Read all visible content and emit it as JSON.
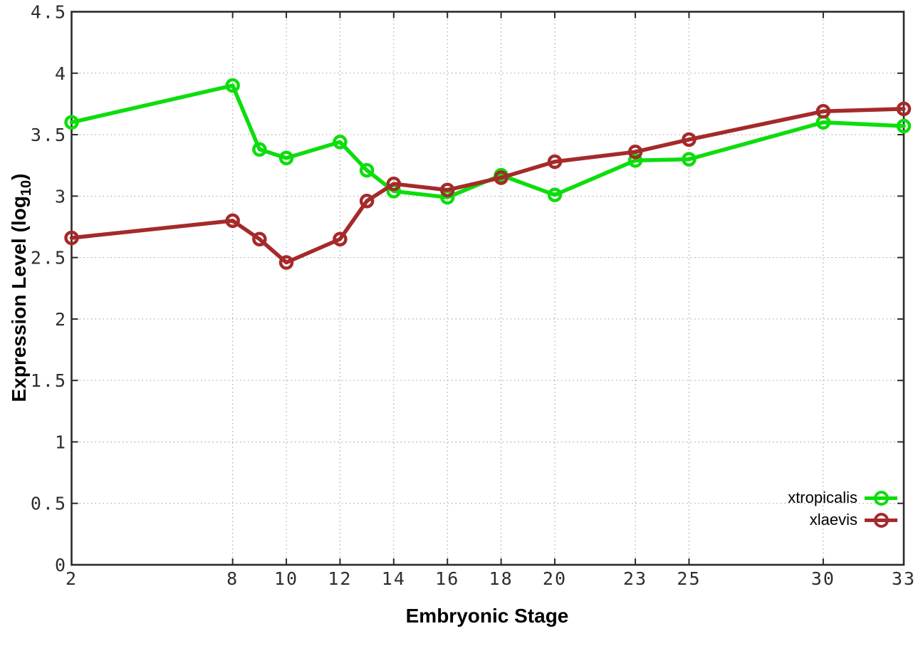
{
  "chart_data": {
    "type": "line",
    "title": "",
    "xlabel": "Embryonic Stage",
    "ylabel": "Expression Level (log10)",
    "ylabel_parts": {
      "prefix": "Expression Level (log",
      "sub": "10",
      "suffix": ")"
    },
    "x": [
      2,
      8,
      9,
      10,
      12,
      13,
      14,
      16,
      18,
      20,
      23,
      25,
      30,
      33
    ],
    "series": [
      {
        "name": "xtropicalis",
        "color": "#0ddd0d",
        "marker": "open-circle",
        "values": [
          3.6,
          3.9,
          3.38,
          3.31,
          3.44,
          3.21,
          3.04,
          2.99,
          3.17,
          3.01,
          3.29,
          3.3,
          3.6,
          3.57
        ]
      },
      {
        "name": "xlaevis",
        "color": "#a52a2a",
        "marker": "open-circle",
        "values": [
          2.66,
          2.8,
          2.65,
          2.46,
          2.65,
          2.96,
          3.1,
          3.05,
          3.15,
          3.28,
          3.36,
          3.46,
          3.69,
          3.71
        ]
      }
    ],
    "xticks": [
      2,
      8,
      10,
      12,
      14,
      16,
      18,
      20,
      23,
      25,
      30,
      33
    ],
    "yticks": [
      0,
      0.5,
      1,
      1.5,
      2,
      2.5,
      3,
      3.5,
      4,
      4.5
    ],
    "xlim": [
      2,
      33
    ],
    "ylim": [
      0,
      4.5
    ],
    "grid": true,
    "legend": {
      "position": "inside-bottom-right",
      "entries": [
        "xtropicalis",
        "xlaevis"
      ]
    }
  }
}
